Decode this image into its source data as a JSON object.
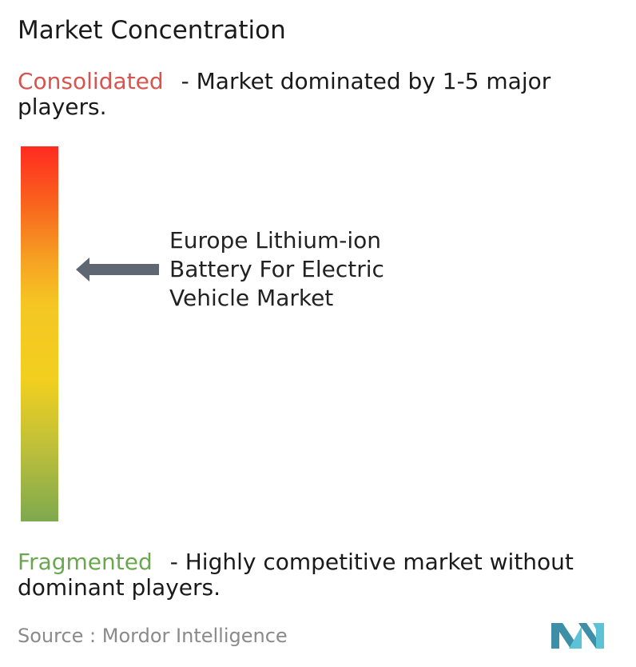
{
  "title": "Market Concentration",
  "scale": {
    "top": {
      "label": "Consolidated",
      "label_color": "#d9534f",
      "description": "- Market dominated by 1-5 major players."
    },
    "bottom": {
      "label": "Fragmented",
      "label_color": "#6aa84f",
      "description": "- Highly competitive market without dominant players."
    }
  },
  "chart_data": {
    "type": "bar",
    "orientation": "vertical-gradient-scale",
    "title": "Market Concentration",
    "scale_top": "Consolidated",
    "scale_bottom": "Fragmented",
    "marker": {
      "label": "Europe Lithium-ion Battery For Electric Vehicle Market",
      "position_fraction_from_top": 0.33
    },
    "gradient_colors": [
      "#ff2a20",
      "#f6a023",
      "#f2cf1f",
      "#7ea94f"
    ]
  },
  "arrow_color": "#5f6773",
  "source": "Source :  Mordor Intelligence",
  "logo": {
    "name": "mordor-intelligence-logo",
    "colors": [
      "#3d8fa8",
      "#5cc3d6"
    ]
  }
}
